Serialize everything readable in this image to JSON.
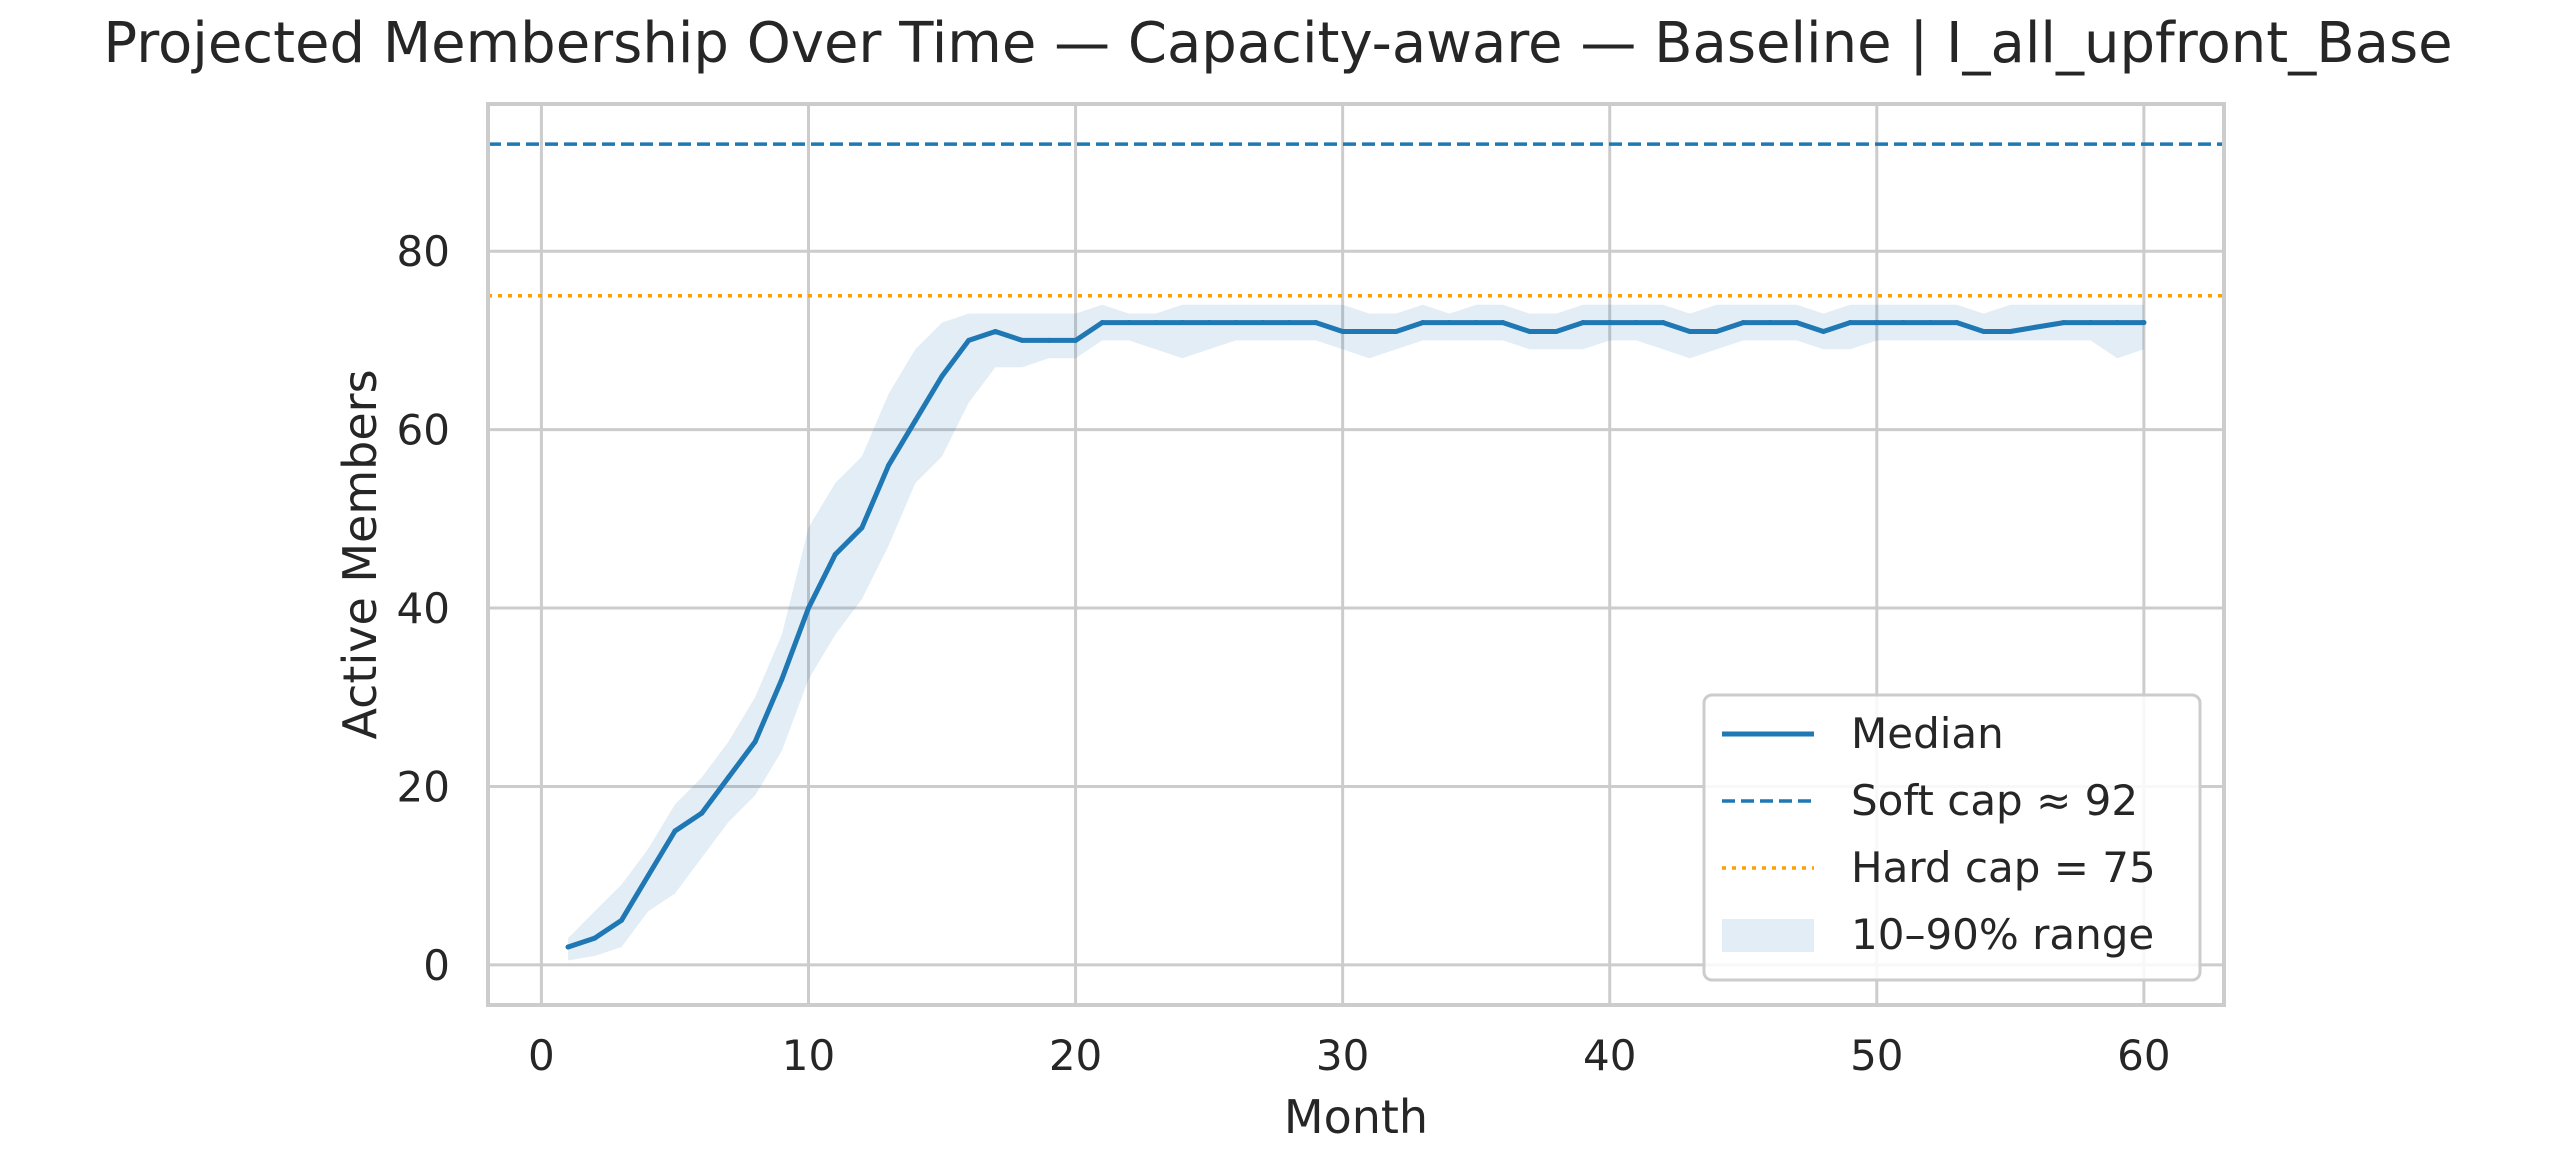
{
  "chart_data": {
    "type": "line",
    "title": "Projected Membership Over Time — Capacity-aware — Baseline | I_all_upfront_Base",
    "xlabel": "Month",
    "ylabel": "Active Members",
    "xlim": [
      -2,
      63
    ],
    "ylim": [
      -4.5,
      96.5
    ],
    "xticks": [
      0,
      10,
      20,
      30,
      40,
      50,
      60
    ],
    "yticks": [
      0,
      20,
      40,
      60,
      80
    ],
    "grid": true,
    "legend_position": "lower-right",
    "colors": {
      "median": "#1f77b4",
      "soft_cap": "#1f77b4",
      "hard_cap": "#ff9f00",
      "band": "#1f77b4",
      "grid": "#cccccc",
      "spine": "#cccccc"
    },
    "x": [
      1,
      2,
      3,
      4,
      5,
      6,
      7,
      8,
      9,
      10,
      11,
      12,
      13,
      14,
      15,
      16,
      17,
      18,
      19,
      20,
      21,
      22,
      23,
      24,
      25,
      26,
      27,
      28,
      29,
      30,
      31,
      32,
      33,
      34,
      35,
      36,
      37,
      38,
      39,
      40,
      41,
      42,
      43,
      44,
      45,
      46,
      47,
      48,
      49,
      50,
      51,
      52,
      53,
      54,
      55,
      56,
      57,
      58,
      59,
      60
    ],
    "series": [
      {
        "name": "Median",
        "style": "solid",
        "values": [
          2,
          3,
          5,
          10,
          15,
          17,
          21,
          25,
          32,
          40,
          46,
          49,
          56,
          61,
          66,
          70,
          71,
          70,
          70,
          70,
          72,
          72,
          72,
          72,
          72,
          72,
          72,
          72,
          72,
          71,
          71,
          71,
          72,
          72,
          72,
          72,
          71,
          71,
          72,
          72,
          72,
          72,
          71,
          71,
          72,
          72,
          72,
          71,
          72,
          72,
          72,
          72,
          72,
          71,
          71,
          71.5,
          72,
          72,
          72,
          72
        ]
      }
    ],
    "band": {
      "name": "10–90% range",
      "lower": [
        0.5,
        1,
        2,
        6,
        8,
        12,
        16,
        19,
        24,
        32,
        37,
        41,
        47,
        54,
        57,
        63,
        67,
        67,
        68,
        68,
        70,
        70,
        69,
        68,
        69,
        70,
        70,
        70,
        70,
        69,
        68,
        69,
        70,
        70,
        70,
        70,
        69,
        69,
        69,
        70,
        70,
        69,
        68,
        69,
        70,
        70,
        70,
        69,
        69,
        70,
        70,
        70,
        70,
        70,
        70,
        70,
        70,
        70,
        68,
        69
      ],
      "upper": [
        3,
        6,
        9,
        13,
        18,
        21,
        25,
        30,
        37,
        49,
        54,
        57,
        64,
        69,
        72,
        73,
        73,
        73,
        73,
        73,
        74,
        73,
        73,
        74,
        74,
        74,
        74,
        74,
        74,
        74,
        73,
        73,
        74,
        73,
        74,
        74,
        73,
        73,
        74,
        74,
        74,
        74,
        73,
        74,
        74,
        74,
        74,
        73,
        74,
        74,
        74,
        74,
        74,
        73,
        74,
        74,
        74,
        74,
        74,
        74
      ]
    },
    "reference_lines": [
      {
        "name": "Soft cap ≈ 92",
        "value": 92,
        "style": "dashed"
      },
      {
        "name": "Hard cap = 75",
        "value": 75,
        "style": "dotted"
      }
    ],
    "legend": [
      "Median",
      "Soft cap ≈ 92",
      "Hard cap = 75",
      "10–90% range"
    ]
  }
}
